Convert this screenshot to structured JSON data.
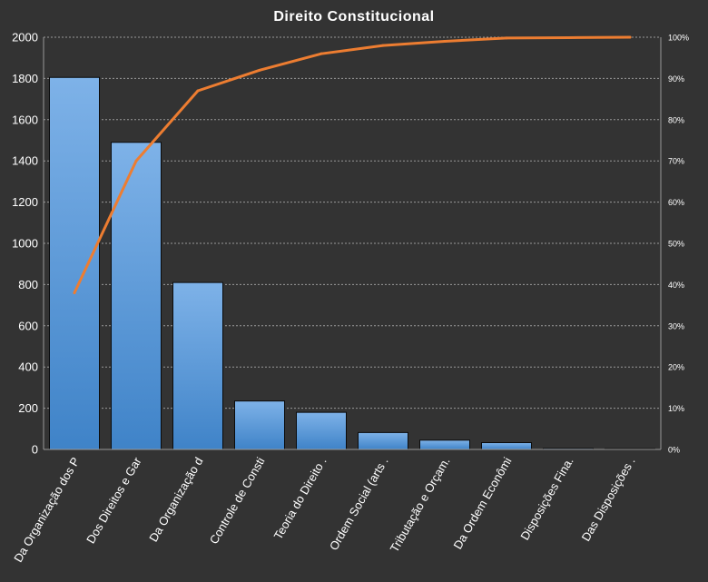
{
  "chart_data": {
    "type": "bar",
    "title": "Direito  Constitucional",
    "categories": [
      "Da Organização dos P",
      "Dos Direitos e Gar",
      "Da Organização d",
      "Controle de Consti",
      "Teoria do Direito .",
      "Ordem Social (arts .",
      "Tributação e Orçam.",
      "Da Ordem Econômi",
      "Disposições Fina.",
      "Das Disposições ."
    ],
    "series": [
      {
        "type": "bar",
        "axis": "left",
        "values": [
          1805,
          1490,
          810,
          235,
          180,
          82,
          45,
          33,
          5,
          3
        ]
      },
      {
        "type": "line",
        "axis": "right",
        "values": [
          0.38,
          0.7,
          0.87,
          0.92,
          0.96,
          0.98,
          0.99,
          0.998,
          0.999,
          1.0
        ]
      }
    ],
    "y_left": {
      "min": 0,
      "max": 2000,
      "ticks": [
        "0",
        "200",
        "400",
        "600",
        "800",
        "1000",
        "1200",
        "1400",
        "1600",
        "1800",
        "2000"
      ]
    },
    "y_right": {
      "min": 0,
      "max": 1,
      "ticks": [
        "0%",
        "10%",
        "20%",
        "30%",
        "40%",
        "50%",
        "60%",
        "70%",
        "80%",
        "90%",
        "100%"
      ]
    },
    "grid": true,
    "legend": "none",
    "colors": {
      "background": "#333333",
      "bar_top": "#7eb2e8",
      "bar_bottom": "#3f83c8",
      "line": "#ed7d31",
      "grid": "#9a9a9a",
      "text": "#ffffff"
    }
  }
}
